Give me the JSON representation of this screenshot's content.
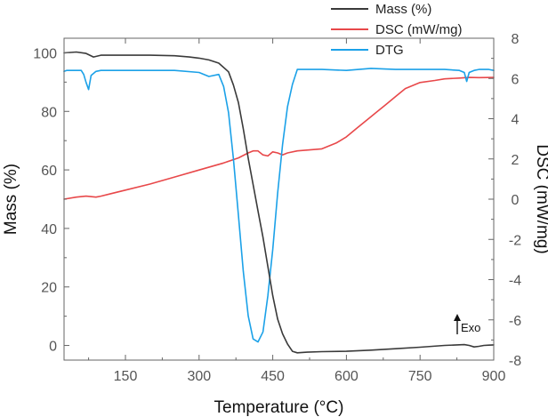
{
  "chart_data": {
    "type": "line",
    "xlabel": "Temperature (°C)",
    "ylabel_left": "Mass (%)",
    "ylabel_right": "DSC (mW/mg)",
    "xlim": [
      25,
      900
    ],
    "ylim_left": [
      -5,
      105
    ],
    "ylim_right": [
      -8,
      8
    ],
    "x_ticks": [
      150,
      300,
      450,
      600,
      750,
      900
    ],
    "y_ticks_left": [
      0,
      20,
      40,
      60,
      80,
      100
    ],
    "y_ticks_right": [
      -8,
      -6,
      -4,
      -2,
      0,
      2,
      4,
      6,
      8
    ],
    "grid": false,
    "legend_position": "top-right",
    "annotation": "Exo",
    "series": [
      {
        "name": "Mass (%)",
        "axis": "left",
        "color": "#3a3a3a",
        "x": [
          25,
          50,
          70,
          85,
          100,
          150,
          200,
          250,
          280,
          300,
          320,
          340,
          360,
          370,
          380,
          390,
          400,
          410,
          420,
          430,
          440,
          450,
          460,
          470,
          480,
          490,
          500,
          520,
          550,
          600,
          650,
          700,
          750,
          800,
          840,
          850,
          860,
          870,
          880,
          890,
          900
        ],
        "values": [
          100,
          100.3,
          99.8,
          98.6,
          99.2,
          99.2,
          99.2,
          99,
          98.6,
          98.2,
          97.6,
          96.5,
          93.5,
          89,
          83,
          74,
          64,
          55,
          46,
          37,
          27,
          17,
          9,
          4,
          0.5,
          -2,
          -2.5,
          -2.3,
          -2.1,
          -2,
          -1.6,
          -1.1,
          -0.6,
          0,
          0.3,
          0,
          -0.5,
          -0.3,
          0,
          0.1,
          0.2
        ]
      },
      {
        "name": "DSC (mW/mg)",
        "axis": "right",
        "color": "#e8484a",
        "x": [
          25,
          50,
          70,
          90,
          100,
          150,
          200,
          250,
          300,
          350,
          380,
          400,
          410,
          420,
          430,
          440,
          450,
          460,
          470,
          480,
          500,
          550,
          580,
          600,
          620,
          650,
          680,
          700,
          720,
          750,
          780,
          800,
          830,
          850,
          870,
          900
        ],
        "values": [
          0,
          0.1,
          0.15,
          0.1,
          0.15,
          0.45,
          0.75,
          1.1,
          1.45,
          1.8,
          2.05,
          2.3,
          2.4,
          2.4,
          2.2,
          2.15,
          2.35,
          2.3,
          2.2,
          2.3,
          2.4,
          2.5,
          2.8,
          3.1,
          3.5,
          4.1,
          4.7,
          5.1,
          5.5,
          5.8,
          5.9,
          5.98,
          6.02,
          6.05,
          6.04,
          6.05
        ]
      },
      {
        "name": "DTG",
        "axis": "right",
        "color": "#1ba1e8",
        "x": [
          25,
          30,
          60,
          65,
          70,
          75,
          80,
          90,
          100,
          150,
          200,
          250,
          300,
          320,
          340,
          350,
          360,
          370,
          380,
          390,
          400,
          410,
          420,
          430,
          440,
          450,
          460,
          470,
          480,
          490,
          500,
          550,
          600,
          650,
          700,
          750,
          800,
          830,
          840,
          845,
          850,
          860,
          870,
          880,
          890,
          900
        ],
        "values": [
          6.35,
          6.4,
          6.4,
          6.2,
          5.8,
          5.45,
          6.15,
          6.35,
          6.4,
          6.4,
          6.4,
          6.4,
          6.3,
          6.1,
          6.2,
          5.6,
          4.3,
          2.0,
          -0.8,
          -3.6,
          -5.8,
          -6.95,
          -7.1,
          -6.6,
          -4.8,
          -2.5,
          0.3,
          2.7,
          4.6,
          5.7,
          6.45,
          6.45,
          6.4,
          6.5,
          6.45,
          6.45,
          6.45,
          6.4,
          6.3,
          5.85,
          6.3,
          6.4,
          6.45,
          6.45,
          6.45,
          6.4
        ]
      }
    ]
  }
}
